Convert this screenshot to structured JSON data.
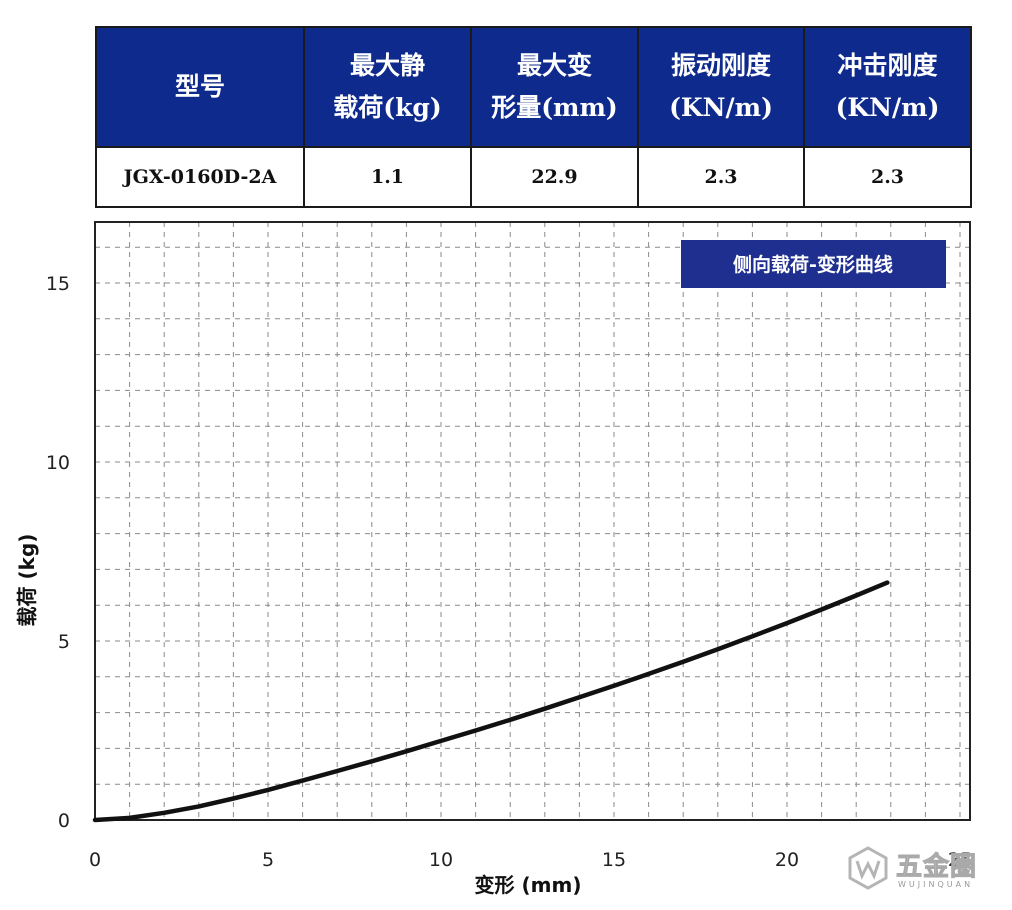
{
  "spec_table": {
    "headers": [
      [
        "型号"
      ],
      [
        "最大静",
        "载荷(kg)"
      ],
      [
        "最大变",
        "形量(mm)"
      ],
      [
        "振动刚度",
        "(KN/m)"
      ],
      [
        "冲击刚度",
        "(KN/m)"
      ]
    ],
    "row": [
      "JGX-0160D-2A",
      "1.1",
      "22.9",
      "2.3",
      "2.3"
    ],
    "header_color": "#0e2a8c"
  },
  "chart_data": {
    "type": "line",
    "title": "侧向载荷-变形曲线",
    "xlabel": "变形 (mm)",
    "ylabel": "载荷 (kg)",
    "xlim": [
      0,
      25
    ],
    "ylim": [
      0,
      17
    ],
    "x_ticks": [
      0,
      5,
      10,
      15,
      20,
      25
    ],
    "x_tick_labels": [
      "0",
      "5",
      "10",
      "15",
      "20",
      "25"
    ],
    "y_ticks": [
      0,
      5,
      10,
      15
    ],
    "y_tick_labels": [
      "0",
      "5",
      "10",
      "15"
    ],
    "grid": true,
    "grid_style": "dashed",
    "legend_position": "top-right",
    "legend_color": "#1f2f8f",
    "line_color": "#111111",
    "series": [
      {
        "name": "侧向载荷-变形曲线",
        "x": [
          0,
          1,
          2,
          3,
          4,
          5,
          6,
          7,
          8,
          9,
          10,
          11,
          12,
          13,
          14,
          15,
          16,
          17,
          18,
          19,
          20,
          21,
          22,
          22.9
        ],
        "y": [
          0,
          0.06,
          0.2,
          0.38,
          0.6,
          0.84,
          1.1,
          1.37,
          1.64,
          1.92,
          2.21,
          2.5,
          2.8,
          3.11,
          3.43,
          3.75,
          4.08,
          4.42,
          4.77,
          5.13,
          5.5,
          5.88,
          6.27,
          6.63
        ]
      }
    ]
  },
  "watermark": {
    "text": "五金圈",
    "sub": "WUJINQUAN"
  }
}
